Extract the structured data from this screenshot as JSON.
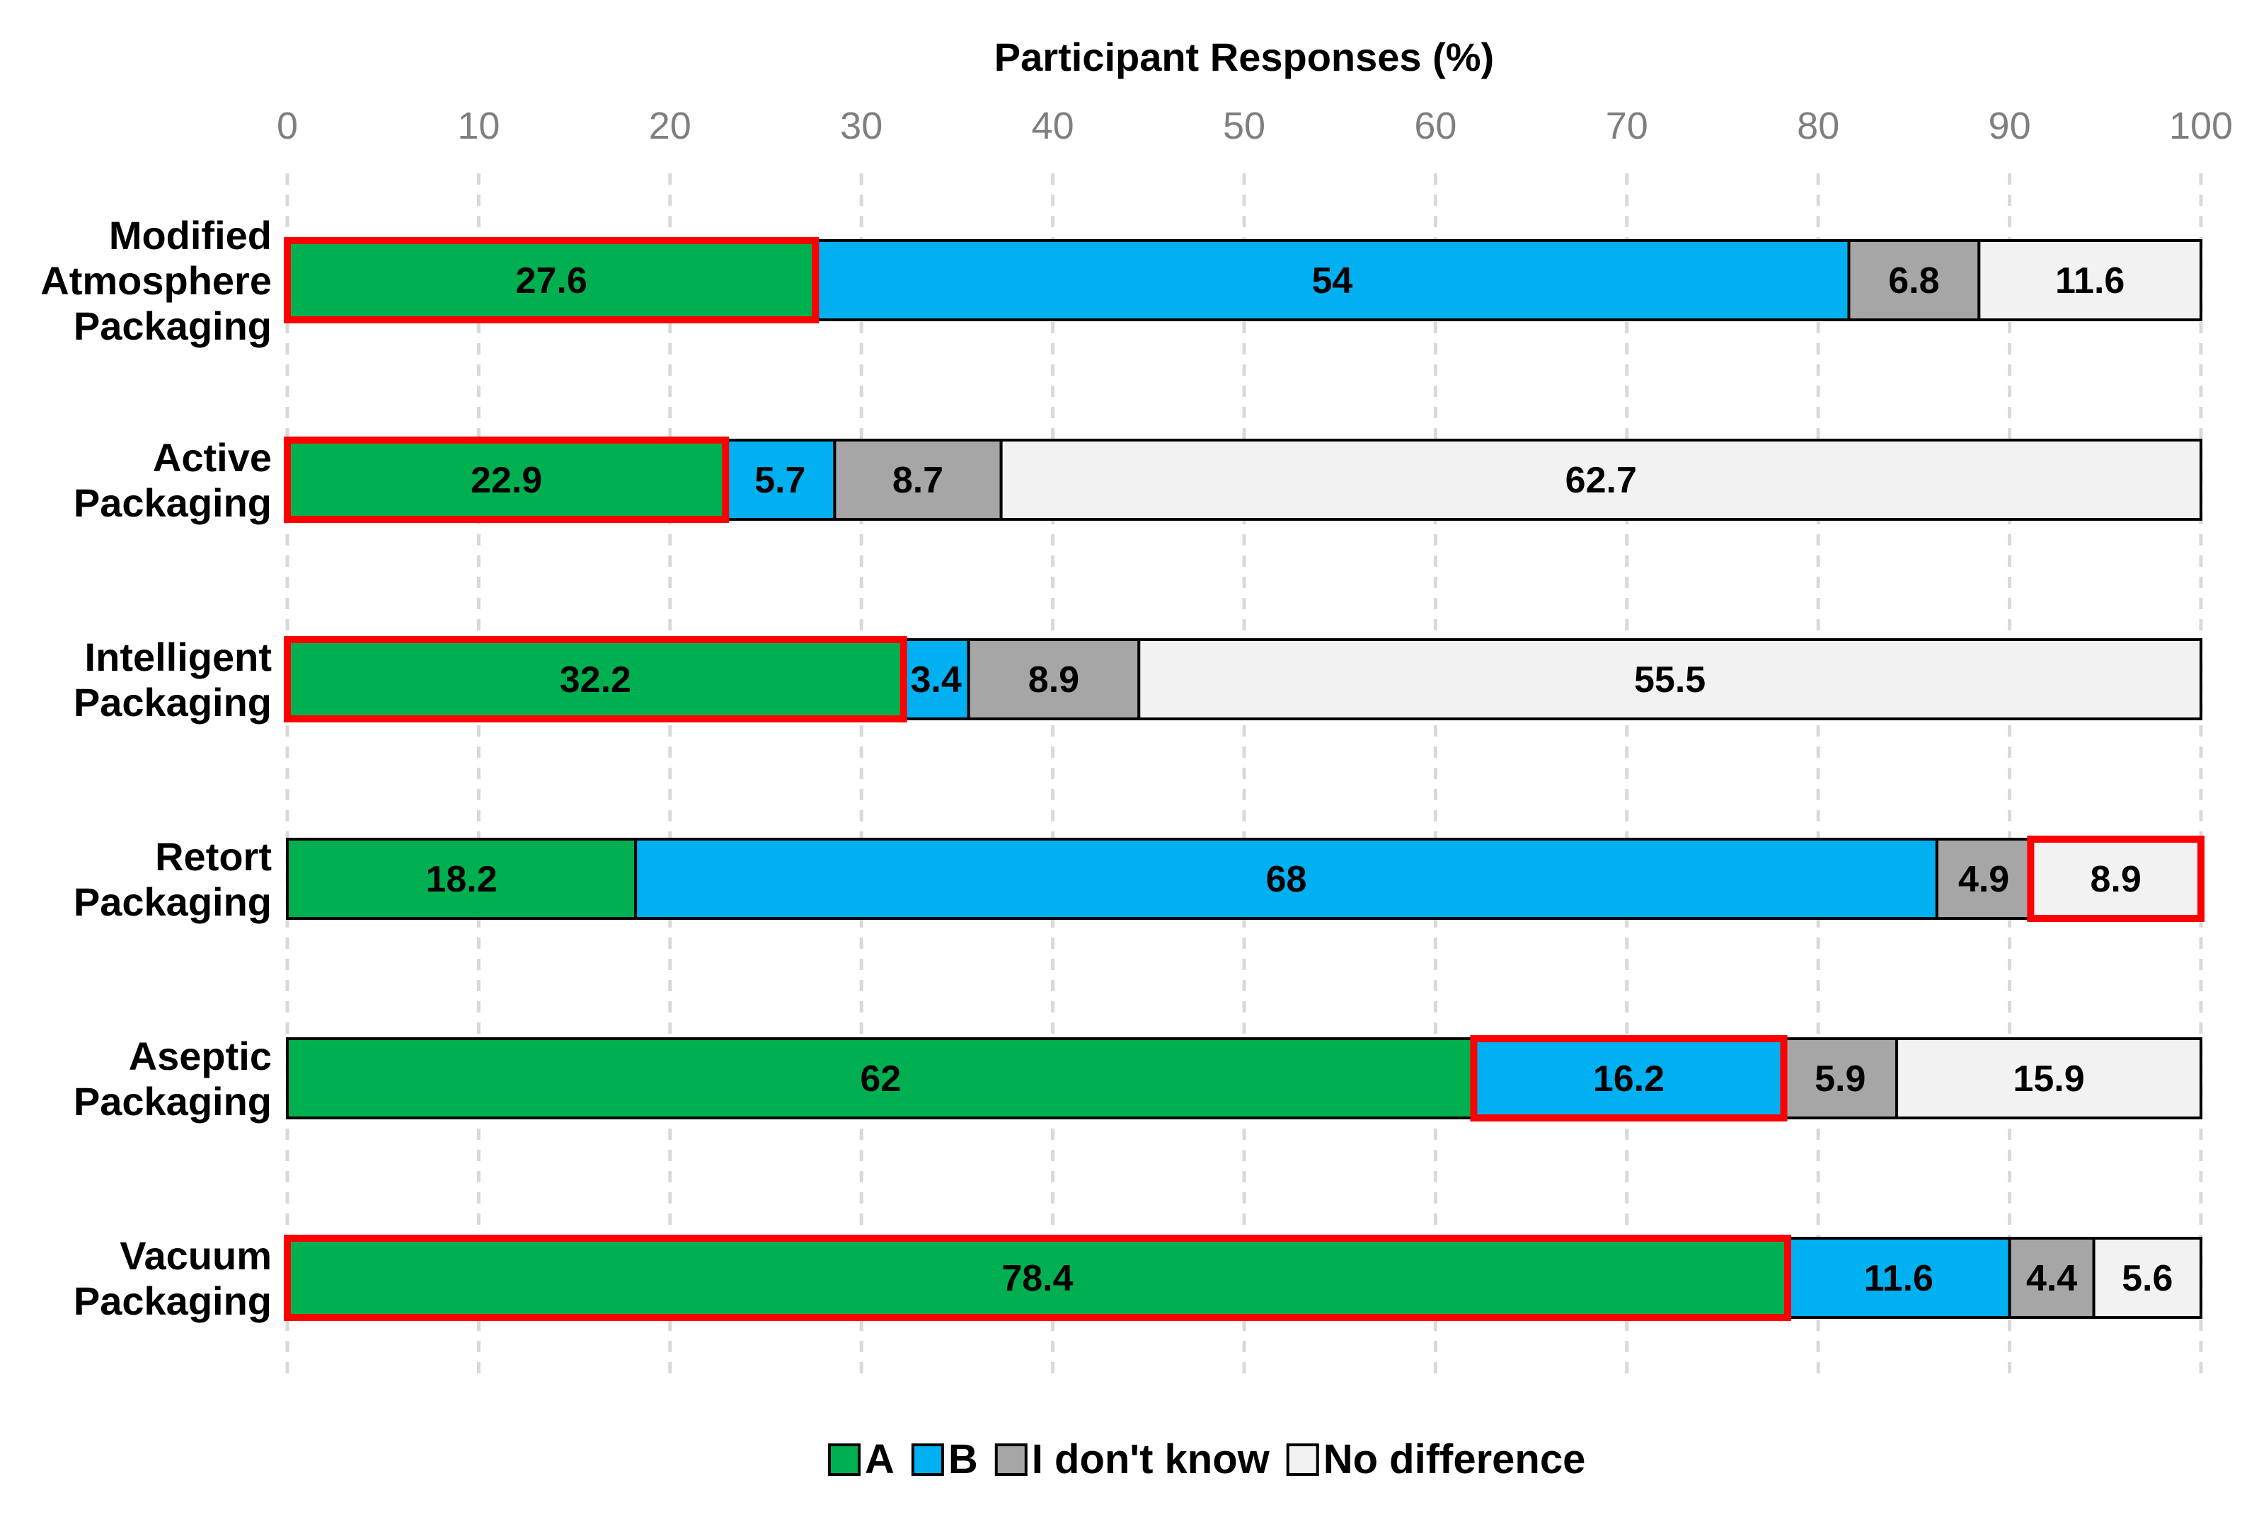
{
  "chart_data": {
    "type": "bar",
    "orientation": "horizontal",
    "stacked": true,
    "title": "",
    "xlabel": "Participant Responses (%)",
    "xlabel_position": "top",
    "xlim": [
      0,
      100
    ],
    "xticks": [
      "0",
      "10",
      "20",
      "30",
      "40",
      "50",
      "60",
      "70",
      "80",
      "90",
      "100"
    ],
    "grid": "vertical dashed",
    "legend_position": "bottom-center",
    "categories": [
      [
        "Modified",
        "Atmosphere",
        "Packaging"
      ],
      [
        "Active",
        "Packaging"
      ],
      [
        "Intelligent",
        "Packaging"
      ],
      [
        "Retort",
        "Packaging"
      ],
      [
        "Aseptic",
        "Packaging"
      ],
      [
        "Vacuum",
        "Packaging"
      ]
    ],
    "series": [
      {
        "name": "A",
        "color": "#00b050",
        "values": [
          27.6,
          22.9,
          32.2,
          18.2,
          62,
          78.4
        ],
        "labels": [
          "27.6",
          "22.9",
          "32.2",
          "18.2",
          "62",
          "78.4"
        ]
      },
      {
        "name": "B",
        "color": "#00b0f0",
        "values": [
          54,
          5.7,
          3.4,
          68,
          16.2,
          11.6
        ],
        "labels": [
          "54",
          "5.7",
          "3.4",
          "68",
          "16.2",
          "11.6"
        ]
      },
      {
        "name": "I don't know",
        "color": "#a6a6a6",
        "values": [
          6.8,
          8.7,
          8.9,
          4.9,
          5.9,
          4.4
        ],
        "labels": [
          "6.8",
          "8.7",
          "8.9",
          "4.9",
          "5.9",
          "4.4"
        ]
      },
      {
        "name": "No difference",
        "color": "#f2f2f2",
        "values": [
          11.6,
          62.7,
          55.5,
          8.9,
          15.9,
          5.6
        ],
        "labels": [
          "11.6",
          "62.7",
          "55.5",
          "8.9",
          "15.9",
          "5.6"
        ]
      }
    ],
    "highlighted": [
      {
        "category_index": 0,
        "series": "A"
      },
      {
        "category_index": 1,
        "series": "A"
      },
      {
        "category_index": 2,
        "series": "A"
      },
      {
        "category_index": 3,
        "series": "No difference"
      },
      {
        "category_index": 4,
        "series": "B"
      },
      {
        "category_index": 5,
        "series": "A"
      }
    ],
    "highlight_color": "#ff0000"
  }
}
